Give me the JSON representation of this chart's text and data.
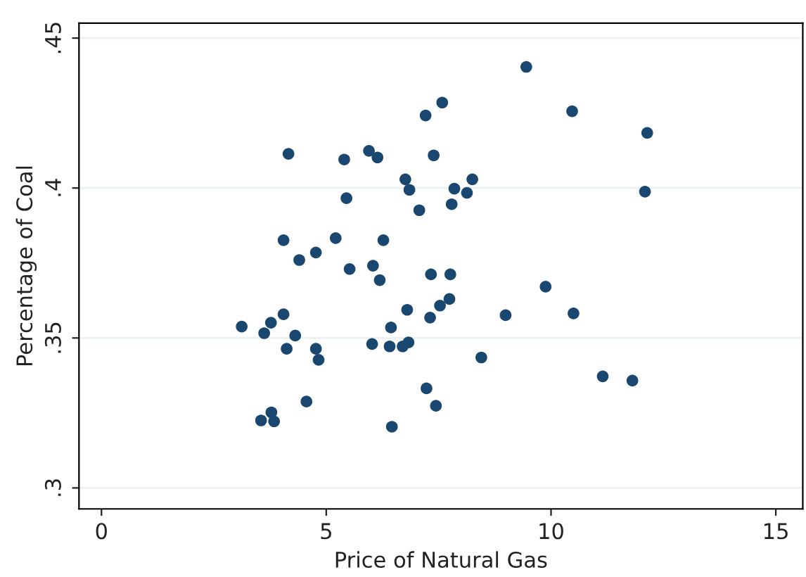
{
  "chart_data": {
    "type": "scatter",
    "xlabel": "Price of Natural Gas",
    "ylabel": "Percentage of Coal",
    "x": [
      4.16,
      5.4,
      5.95,
      6.14,
      7.21,
      7.58,
      7.39,
      6.76,
      6.85,
      7.85,
      8.25,
      8.13,
      7.79,
      7.07,
      5.45,
      4.05,
      5.21,
      6.27,
      4.4,
      4.77,
      5.52,
      6.04,
      6.19,
      7.33,
      7.76,
      7.74,
      7.53,
      7.31,
      6.8,
      6.44,
      4.05,
      3.77,
      3.62,
      3.12,
      4.31,
      4.12,
      4.77,
      4.83,
      6.02,
      6.41,
      6.7,
      6.83,
      8.45,
      7.23,
      7.44,
      4.56,
      3.55,
      3.78,
      3.84,
      6.46,
      9.45,
      10.47,
      12.14,
      12.09,
      9.88,
      8.99,
      10.5,
      11.15,
      11.81
    ],
    "values": [
      0.4114,
      0.4095,
      0.4124,
      0.4102,
      0.4242,
      0.4285,
      0.4109,
      0.4029,
      0.3994,
      0.3998,
      0.4029,
      0.3984,
      0.3946,
      0.3926,
      0.3966,
      0.3826,
      0.3833,
      0.3826,
      0.376,
      0.3785,
      0.373,
      0.3741,
      0.3693,
      0.3712,
      0.3712,
      0.363,
      0.3608,
      0.3568,
      0.3594,
      0.3535,
      0.3579,
      0.3551,
      0.3516,
      0.3538,
      0.3508,
      0.3464,
      0.3464,
      0.3427,
      0.348,
      0.3472,
      0.3472,
      0.3485,
      0.3435,
      0.3332,
      0.3274,
      0.3288,
      0.3225,
      0.3252,
      0.3222,
      0.3204,
      0.4404,
      0.4256,
      0.4184,
      0.3988,
      0.3671,
      0.3576,
      0.3582,
      0.3372,
      0.3358
    ],
    "color": "#1a476f",
    "marker": "circle",
    "xlim": [
      -0.5,
      15.6
    ],
    "ylim": [
      0.293,
      0.455
    ],
    "xticks": [
      0,
      5,
      10,
      15
    ],
    "yticks": [
      {
        "value": 0.3,
        "label": ".3"
      },
      {
        "value": 0.35,
        "label": ".35"
      },
      {
        "value": 0.4,
        "label": ".4"
      },
      {
        "value": 0.45,
        "label": ".45"
      }
    ],
    "grid": "y"
  }
}
